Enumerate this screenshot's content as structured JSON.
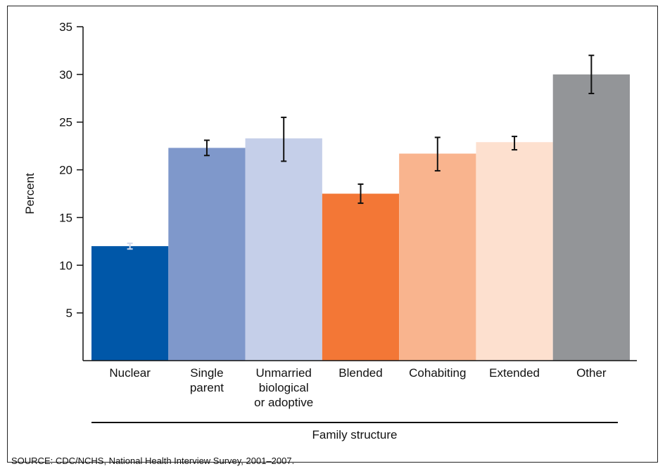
{
  "chart_data": {
    "type": "bar",
    "categories": [
      [
        "Nuclear"
      ],
      [
        "Single",
        "parent"
      ],
      [
        "Unmarried",
        "biological",
        "or adoptive"
      ],
      [
        "Blended"
      ],
      [
        "Cohabiting"
      ],
      [
        "Extended"
      ],
      [
        "Other"
      ]
    ],
    "values": [
      12.0,
      22.3,
      23.3,
      17.5,
      21.7,
      22.9,
      30.0
    ],
    "error_low": [
      11.7,
      21.5,
      20.9,
      16.5,
      19.9,
      22.1,
      28.0
    ],
    "error_high": [
      12.3,
      23.1,
      25.5,
      18.5,
      23.4,
      23.5,
      32.0
    ],
    "colors": [
      "#0057a8",
      "#7f98cb",
      "#c5cfe9",
      "#f37736",
      "#f9b48e",
      "#fde0cf",
      "#939598"
    ],
    "ylabel": "Percent",
    "xlabel": "Family structure",
    "ylim": [
      0,
      35
    ],
    "yticks": [
      5,
      10,
      15,
      20,
      25,
      30,
      35
    ]
  },
  "source": "SOURCE: CDC/NCHS, National Health Interview Survey, 2001–2007."
}
